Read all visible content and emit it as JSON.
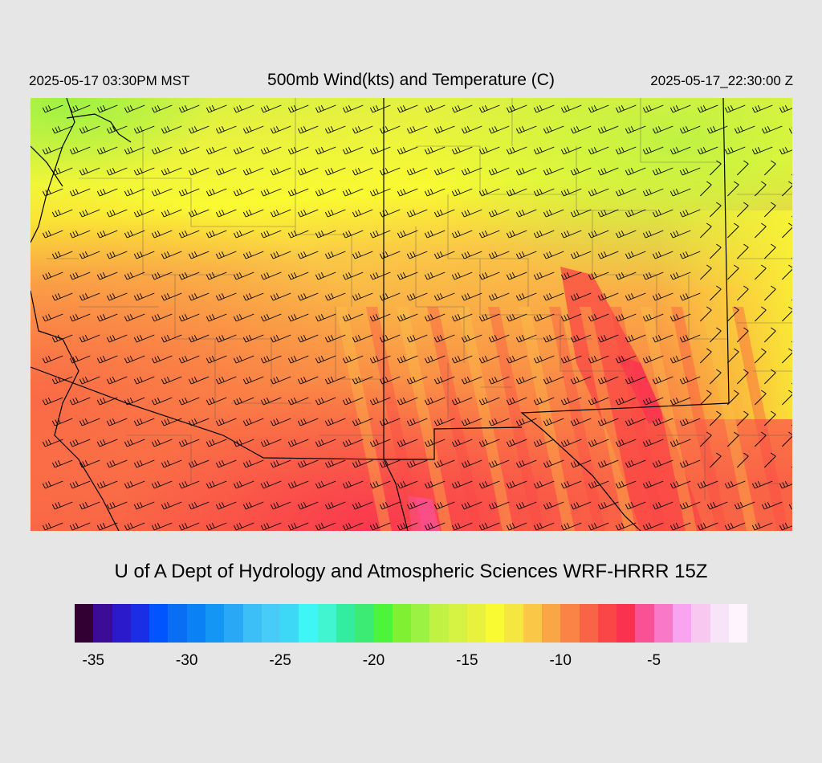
{
  "header": {
    "local_time": "2025-05-17 03:30PM MST",
    "title": "500mb Wind(kts) and Temperature (C)",
    "utc_time": "2025-05-17_22:30:00 Z"
  },
  "map": {
    "variable": "500mb temperature with wind barbs",
    "colors": {
      "background": "#e6e6e6",
      "border_line": "#000000",
      "county_line": "#555555",
      "barb": "#000000"
    }
  },
  "footer": {
    "credit": "U of A Dept of Hydrology and Atmospheric Sciences WRF-HRRR 15Z"
  },
  "colorbar": {
    "colors": [
      "#330033",
      "#3c0c99",
      "#2a1acc",
      "#1a2ee6",
      "#0055ff",
      "#0a6ef5",
      "#0a82f5",
      "#1496f5",
      "#28a8f5",
      "#3cbef7",
      "#46ccf7",
      "#3ed8f7",
      "#40f5f5",
      "#40f5d0",
      "#34eca0",
      "#3ceb74",
      "#4cf43a",
      "#80f033",
      "#9cf243",
      "#c0f243",
      "#d6f243",
      "#e8f23e",
      "#fafa32",
      "#f5e640",
      "#fac846",
      "#faa646",
      "#fa8446",
      "#fa6446",
      "#fa4646",
      "#fa3250",
      "#fa5096",
      "#fa78c8",
      "#f8a4f0",
      "#f8c8f0",
      "#f8e4f8",
      "#fdf4fd"
    ],
    "tick_labels": [
      "-35",
      "-30",
      "-25",
      "-20",
      "-15",
      "-10",
      "-5"
    ],
    "tick_values": [
      -35,
      -30,
      -25,
      -20,
      -15,
      -10,
      -5
    ]
  }
}
